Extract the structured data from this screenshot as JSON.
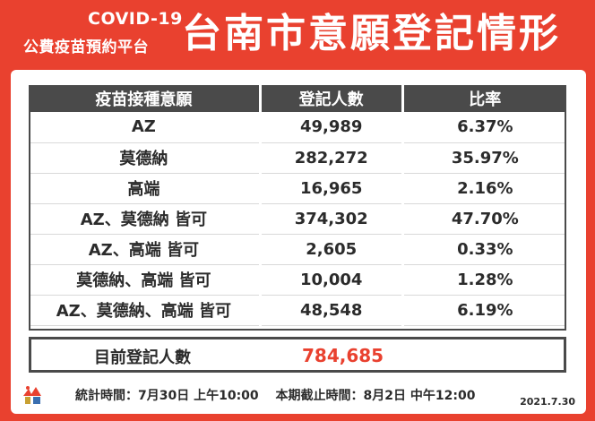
{
  "header": {
    "brand_line1": "COVID-19",
    "brand_line2": "公費疫苗預約平台",
    "title": "台南市意願登記情形"
  },
  "table": {
    "columns": [
      "疫苗接種意願",
      "登記人數",
      "比率"
    ],
    "rows": [
      {
        "label": "AZ",
        "count": "49,989",
        "ratio": "6.37%"
      },
      {
        "label": "莫德納",
        "count": "282,272",
        "ratio": "35.97%"
      },
      {
        "label": "高端",
        "count": "16,965",
        "ratio": "2.16%"
      },
      {
        "label": "AZ、莫德納 皆可",
        "count": "374,302",
        "ratio": "47.70%"
      },
      {
        "label": "AZ、高端 皆可",
        "count": "2,605",
        "ratio": "0.33%"
      },
      {
        "label": "莫德納、高端 皆可",
        "count": "10,004",
        "ratio": "1.28%"
      },
      {
        "label": "AZ、莫德納、高端 皆可",
        "count": "48,548",
        "ratio": "6.19%"
      }
    ]
  },
  "total": {
    "label": "目前登記人數",
    "value": "784,685"
  },
  "footer": {
    "note": "統計時間：7月30日 上午10:00　 本期截止時間：8月2日 中午12:00",
    "date": "2021.7.30"
  },
  "colors": {
    "background": "#e9412f",
    "header_row": "#4a4a4a",
    "total_value": "#e9412f"
  },
  "icons": {
    "logo": "tainan-city-logo"
  }
}
